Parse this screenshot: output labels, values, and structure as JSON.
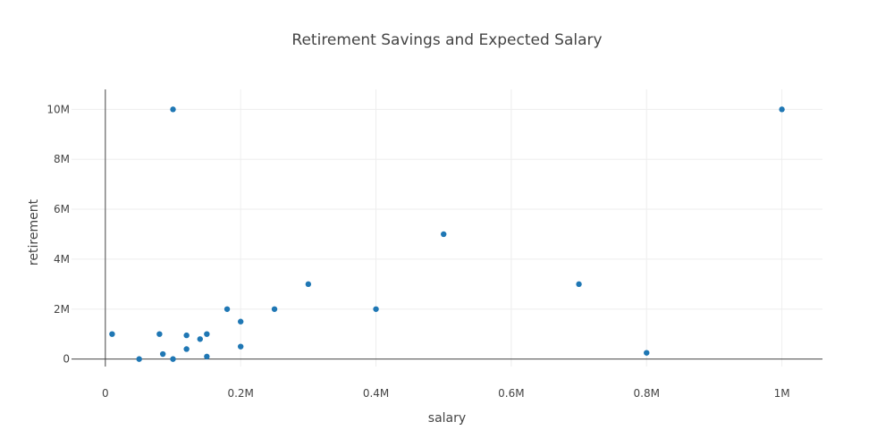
{
  "chart_data": {
    "type": "scatter",
    "title": "Retirement Savings and Expected Salary",
    "xlabel": "salary",
    "ylabel": "retirement",
    "xlim": [
      -50000,
      1060000
    ],
    "ylim": [
      -300000,
      10800000
    ],
    "grid": true,
    "legend": "none",
    "marker_color": "#1f77b4",
    "x_ticks": [
      {
        "value": 0,
        "label": "0"
      },
      {
        "value": 200000,
        "label": "0.2M"
      },
      {
        "value": 400000,
        "label": "0.4M"
      },
      {
        "value": 600000,
        "label": "0.6M"
      },
      {
        "value": 800000,
        "label": "0.8M"
      },
      {
        "value": 1000000,
        "label": "1M"
      }
    ],
    "y_ticks": [
      {
        "value": 0,
        "label": "0"
      },
      {
        "value": 2000000,
        "label": "2M"
      },
      {
        "value": 4000000,
        "label": "4M"
      },
      {
        "value": 6000000,
        "label": "6M"
      },
      {
        "value": 8000000,
        "label": "8M"
      },
      {
        "value": 10000000,
        "label": "10M"
      }
    ],
    "series": [
      {
        "x": [
          10000,
          50000,
          80000,
          85000,
          100000,
          100000,
          120000,
          120000,
          140000,
          150000,
          150000,
          180000,
          200000,
          200000,
          250000,
          300000,
          400000,
          500000,
          700000,
          800000,
          1000000
        ],
        "y": [
          1000000,
          0,
          1000000,
          200000,
          0,
          10000000,
          950000,
          400000,
          800000,
          1000000,
          100000,
          2000000,
          1500000,
          500000,
          2000000,
          3000000,
          2000000,
          5000000,
          3000000,
          250000,
          10000000
        ]
      }
    ]
  }
}
